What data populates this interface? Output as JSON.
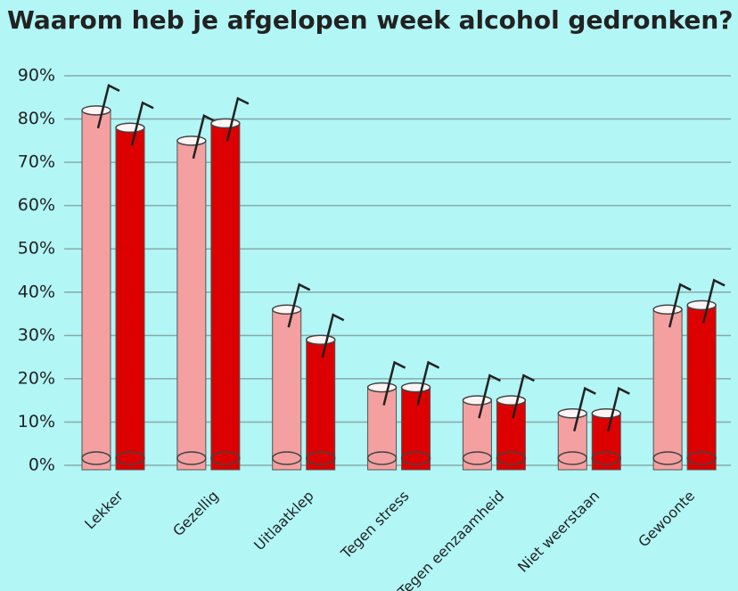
{
  "chart_data": {
    "type": "bar",
    "title": "Waarom  heb je afgelopen week alcohol gedronken?",
    "categories": [
      "Lekker",
      "Gezellig",
      "Uitlaatklep",
      "Tegen stress",
      "Tegen eenzaamheid",
      "Niet weerstaan",
      "Gewoonte"
    ],
    "series": [
      {
        "color": "#f4a0a0",
        "values": [
          82,
          75,
          36,
          18,
          15,
          12,
          36
        ]
      },
      {
        "color": "#dd0000",
        "values": [
          78,
          79,
          29,
          18,
          15,
          12,
          37
        ]
      }
    ],
    "ylim": [
      0,
      90
    ],
    "yticks": [
      {
        "value": 0,
        "label": "0%"
      },
      {
        "value": 10,
        "label": "10%"
      },
      {
        "value": 20,
        "label": "20%"
      },
      {
        "value": 30,
        "label": "30%"
      },
      {
        "value": 40,
        "label": "40%"
      },
      {
        "value": 50,
        "label": "50%"
      },
      {
        "value": 60,
        "label": "60%"
      },
      {
        "value": 70,
        "label": "70%"
      },
      {
        "value": 80,
        "label": "80%"
      },
      {
        "value": 90,
        "label": "90%"
      }
    ],
    "grid": true
  }
}
